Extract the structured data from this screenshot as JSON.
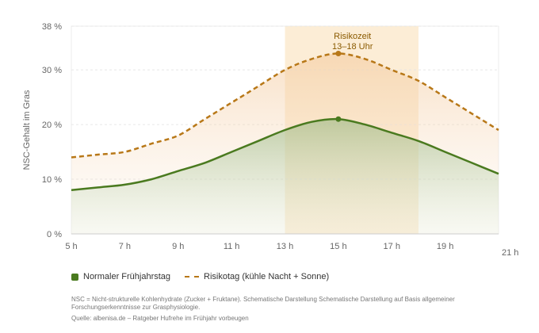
{
  "chart_data": {
    "type": "line",
    "ylabel": "NSC-Gehalt im Gras",
    "xlabel": "",
    "x_tick_labels": [
      "5 h",
      "7 h",
      "9 h",
      "11 h",
      "13 h",
      "15 h",
      "17 h",
      "19 h",
      "21 h"
    ],
    "x_ticks": [
      5,
      7,
      9,
      11,
      13,
      15,
      17,
      19,
      21
    ],
    "y_tick_labels": [
      "0 %",
      "10 %",
      "20 %",
      "30 %",
      "38 %"
    ],
    "y_ticks": [
      0,
      10,
      20,
      30,
      38
    ],
    "xlim": [
      5,
      21
    ],
    "ylim": [
      0,
      38
    ],
    "grid": true,
    "legend_position": "bottom-left",
    "x": [
      5,
      6,
      7,
      8,
      9,
      10,
      11,
      12,
      13,
      14,
      15,
      16,
      17,
      18,
      19,
      20,
      21
    ],
    "series": [
      {
        "name": "Normaler Frühjahrstag",
        "style": "solid",
        "color": "#4a7a1f",
        "values": [
          8,
          8.5,
          9,
          10,
          11.5,
          13,
          15,
          17,
          19,
          20.5,
          21,
          20,
          18.5,
          17,
          15,
          13,
          11
        ]
      },
      {
        "name": "Risikotag (kühle Nacht + Sonne)",
        "style": "dashed",
        "color": "#b87818",
        "values": [
          14,
          14.5,
          15,
          16.5,
          18,
          21,
          24,
          27,
          30,
          32,
          33,
          32,
          30,
          28,
          25,
          22,
          19
        ]
      }
    ],
    "annotation": {
      "label": "Risikozeit",
      "sublabel": "13–18 Uhr",
      "x_start": 13,
      "x_end": 18,
      "peak_x": 15
    }
  },
  "footnote": "NSC = Nicht-strukturelle Kohlenhydrate (Zucker + Fruktane). Schematische Darstellung Schematische Darstellung auf Basis allgemeiner Forschungserkenntnisse zur Grasphysiologie.",
  "source": "Quelle: albenisa.de – Ratgeber Hufrehe im Frühjahr vorbeugen",
  "colors": {
    "green": "#4a7a1f",
    "orange": "#b87818",
    "risk_band": "#fbe8cc"
  }
}
